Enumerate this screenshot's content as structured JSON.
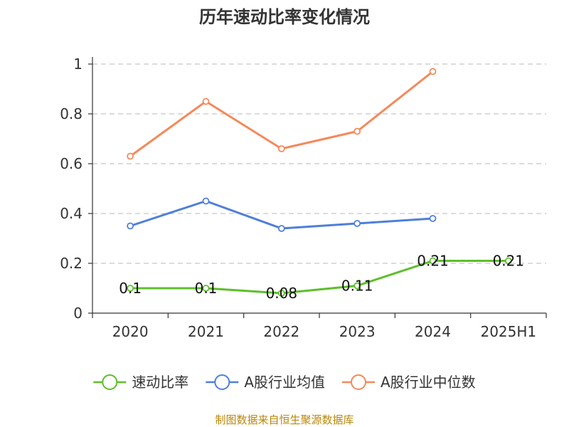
{
  "chart_data": {
    "type": "line",
    "title": "历年速动比率变化情况",
    "categories": [
      "2020",
      "2021",
      "2022",
      "2023",
      "2024",
      "2025H1"
    ],
    "ylim": [
      0,
      1
    ],
    "yticks": [
      "0",
      "0.2",
      "0.4",
      "0.6",
      "0.8",
      "1"
    ],
    "ytick_values": [
      0,
      0.2,
      0.4,
      0.6,
      0.8,
      1
    ],
    "grid": true,
    "legend_position": "bottom",
    "series": [
      {
        "name": "速动比率",
        "color": "#5dbf2a",
        "values": [
          0.1,
          0.1,
          0.08,
          0.11,
          0.21,
          0.21
        ],
        "labels": [
          "0.1",
          "0.1",
          "0.08",
          "0.11",
          "0.21",
          "0.21"
        ]
      },
      {
        "name": "A股行业均值",
        "color": "#4f7fd9",
        "values": [
          0.35,
          0.45,
          0.34,
          0.36,
          0.38,
          null
        ]
      },
      {
        "name": "A股行业中位数",
        "color": "#f5895a",
        "values": [
          0.63,
          0.85,
          0.66,
          0.73,
          0.97,
          null
        ]
      }
    ],
    "source": "制图数据来自恒生聚源数据库"
  }
}
